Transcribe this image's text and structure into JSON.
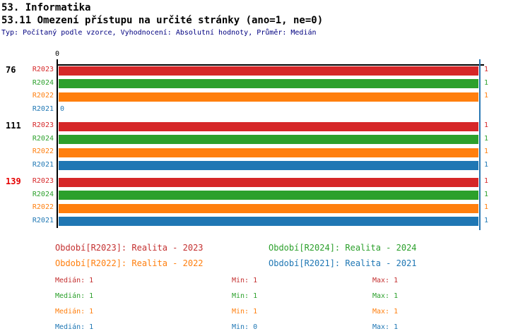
{
  "title": {
    "line1": "53. Informatika",
    "line2": "53.11 Omezení přístupu na určité stránky (ano=1, ne=0)",
    "meta": "Typ: Počítaný podle vzorce, Vyhodnocení: Absolutní hodnoty, Průměr: Medián"
  },
  "chart_data": {
    "type": "bar",
    "orientation": "horizontal",
    "xlim": [
      0,
      1
    ],
    "x_tick_label": "0",
    "axis_color": "#000000",
    "median_line": {
      "value": 1,
      "color": "#2878b4"
    },
    "groups": [
      {
        "label": "76",
        "label_color": "#000000",
        "rows": [
          {
            "period": "R2023",
            "color": "#d62728",
            "value": 1
          },
          {
            "period": "R2024",
            "color": "#2ca02c",
            "value": 1
          },
          {
            "period": "R2022",
            "color": "#ff7f0e",
            "value": 1
          },
          {
            "period": "R2021",
            "color": "#1f77b4",
            "value": 0
          }
        ]
      },
      {
        "label": "111",
        "label_color": "#000000",
        "rows": [
          {
            "period": "R2023",
            "color": "#d62728",
            "value": 1
          },
          {
            "period": "R2024",
            "color": "#2ca02c",
            "value": 1
          },
          {
            "period": "R2022",
            "color": "#ff7f0e",
            "value": 1
          },
          {
            "period": "R2021",
            "color": "#1f77b4",
            "value": 1
          }
        ]
      },
      {
        "label": "139",
        "label_color": "#e60000",
        "rows": [
          {
            "period": "R2023",
            "color": "#d62728",
            "value": 1
          },
          {
            "period": "R2024",
            "color": "#2ca02c",
            "value": 1
          },
          {
            "period": "R2022",
            "color": "#ff7f0e",
            "value": 1
          },
          {
            "period": "R2021",
            "color": "#1f77b4",
            "value": 1
          }
        ]
      }
    ],
    "legend": [
      {
        "label": "Období[R2023]: Realita - 2023",
        "color": "#c43030"
      },
      {
        "label": "Období[R2024]: Realita - 2024",
        "color": "#2ca02c"
      },
      {
        "label": "Období[R2022]: Realita - 2022",
        "color": "#ff7f0e"
      },
      {
        "label": "Období[R2021]: Realita - 2021",
        "color": "#1f77b4"
      }
    ],
    "stats": [
      {
        "median": "Medián: 1",
        "min": "Min: 1",
        "max": "Max: 1",
        "color": "#c43030"
      },
      {
        "median": "Medián: 1",
        "min": "Min: 1",
        "max": "Max: 1",
        "color": "#2ca02c"
      },
      {
        "median": "Medián: 1",
        "min": "Min: 1",
        "max": "Max: 1",
        "color": "#ff7f0e"
      },
      {
        "median": "Medián: 1",
        "min": "Min: 0",
        "max": "Max: 1",
        "color": "#1f77b4"
      }
    ]
  }
}
